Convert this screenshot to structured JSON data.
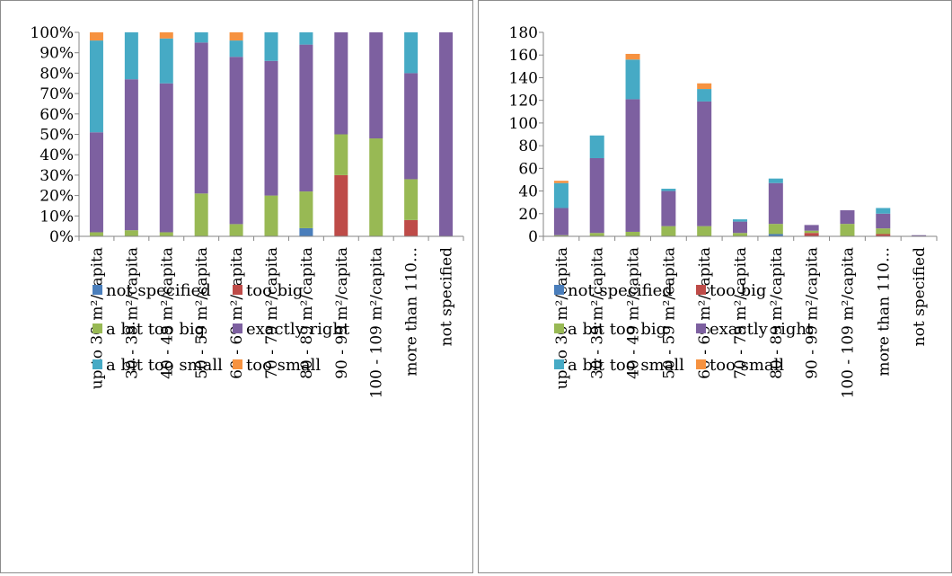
{
  "colors": {
    "not specified": "#4a7ebb",
    "too big": "#be4b48",
    "a bit too big": "#98b954",
    "exactly right": "#7d60a0",
    "a bit too small": "#46aac5",
    "too small": "#f69240"
  },
  "chart_data": [
    {
      "type": "bar",
      "stacked": true,
      "title": "",
      "xlabel": "",
      "ylabel": "",
      "ylim": [
        0,
        100
      ],
      "ytick_step": 10,
      "ytick_suffix": "%",
      "grid": false,
      "legend_position": "bottom",
      "categories": [
        "up to 30 m²/capita",
        "30 - 39 m²/capita",
        "40 - 49 m²/capita",
        "50 - 59 m²/capita",
        "60 - 69 m²/capita",
        "70 - 79 m²/capita",
        "80 - 89 m²/capita",
        "90 - 99 m²/capita",
        "100 - 109 m²/capita",
        "more than 110…",
        "not specified"
      ],
      "series": [
        {
          "name": "not specified",
          "values": [
            0,
            0,
            0,
            0,
            0,
            0,
            4,
            0,
            0,
            0,
            0
          ]
        },
        {
          "name": "too big",
          "values": [
            0,
            0,
            0,
            0,
            0,
            0,
            0,
            30,
            0,
            8,
            0
          ]
        },
        {
          "name": "a bit too big",
          "values": [
            2,
            3,
            2,
            21,
            6,
            20,
            18,
            20,
            48,
            20,
            0
          ]
        },
        {
          "name": "exactly right",
          "values": [
            49,
            74,
            73,
            74,
            82,
            66,
            72,
            50,
            52,
            52,
            100
          ]
        },
        {
          "name": "a bit too small",
          "values": [
            45,
            23,
            22,
            5,
            8,
            14,
            6,
            0,
            0,
            20,
            0
          ]
        },
        {
          "name": "too small",
          "values": [
            4,
            0,
            3,
            0,
            4,
            0,
            0,
            0,
            0,
            0,
            0
          ]
        }
      ]
    },
    {
      "type": "bar",
      "stacked": true,
      "title": "",
      "xlabel": "",
      "ylabel": "",
      "ylim": [
        0,
        180
      ],
      "ytick_step": 20,
      "ytick_suffix": "",
      "grid": false,
      "legend_position": "bottom",
      "categories": [
        "up to 30 m²/capita",
        "30 - 39 m²/capita",
        "40 - 49 m²/capita",
        "50 - 59 m²/capita",
        "60 - 69 m²/capita",
        "70 - 79 m²/capita",
        "80 - 89 m²/capita",
        "90 - 99 m²/capita",
        "100 - 109 m²/capita",
        "more than 110…",
        "not specified"
      ],
      "series": [
        {
          "name": "not specified",
          "values": [
            0,
            0,
            0,
            0,
            0,
            0,
            2,
            0,
            0,
            0,
            0
          ]
        },
        {
          "name": "too big",
          "values": [
            0,
            0,
            0,
            0,
            0,
            0,
            0,
            3,
            0,
            2,
            0
          ]
        },
        {
          "name": "a bit too big",
          "values": [
            1,
            3,
            4,
            9,
            9,
            3,
            9,
            2,
            11,
            5,
            0
          ]
        },
        {
          "name": "exactly right",
          "values": [
            24,
            66,
            117,
            31,
            110,
            10,
            36,
            5,
            12,
            13,
            1
          ]
        },
        {
          "name": "a bit too small",
          "values": [
            22,
            20,
            35,
            2,
            11,
            2,
            4,
            0,
            0,
            5,
            0
          ]
        },
        {
          "name": "too small",
          "values": [
            2,
            0,
            5,
            0,
            5,
            0,
            0,
            0,
            0,
            0,
            0
          ]
        }
      ]
    }
  ]
}
